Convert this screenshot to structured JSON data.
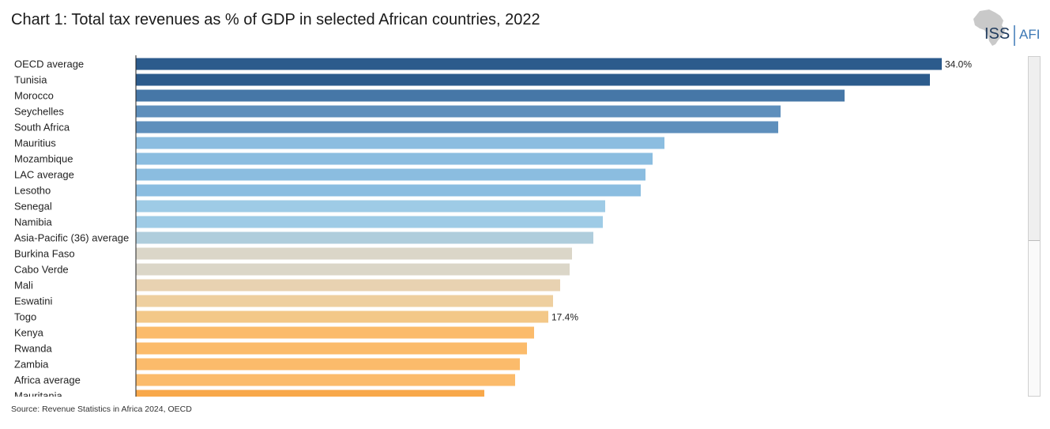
{
  "title": "Chart 1: Total tax revenues as % of GDP in selected African countries, 2022",
  "logo": {
    "left_text": "ISS",
    "right_text": "AFI"
  },
  "source": "Source: Revenue Statistics in Africa 2024, OECD",
  "chart_data": {
    "type": "bar",
    "orientation": "horizontal",
    "title": "Chart 1: Total tax revenues as % of GDP in selected African countries, 2022",
    "xlabel": "",
    "ylabel": "",
    "xlim": [
      0,
      34.5
    ],
    "categories": [
      "OECD average",
      "Tunisia",
      "Morocco",
      "Seychelles",
      "South Africa",
      "Mauritius",
      "Mozambique",
      "LAC average",
      "Lesotho",
      "Senegal",
      "Namibia",
      "Asia-Pacific (36) average",
      "Burkina Faso",
      "Cabo Verde",
      "Mali",
      "Eswatini",
      "Togo",
      "Kenya",
      "Rwanda",
      "Zambia",
      "Africa average",
      "Mauritania"
    ],
    "values": [
      34.0,
      33.5,
      29.9,
      27.2,
      27.1,
      22.3,
      21.8,
      21.5,
      21.3,
      19.8,
      19.7,
      19.3,
      18.4,
      18.3,
      17.9,
      17.6,
      17.4,
      16.8,
      16.5,
      16.2,
      16.0,
      14.7
    ],
    "colors": [
      "#2c5b8c",
      "#2c5b8c",
      "#4677a7",
      "#5e8fbc",
      "#5e8fbc",
      "#8bbde0",
      "#8bbde0",
      "#8bbde0",
      "#8bbde0",
      "#9ecbe6",
      "#9ecbe6",
      "#afcddc",
      "#dbd6c8",
      "#dbd6c8",
      "#e8d2b1",
      "#eecf9f",
      "#f3c888",
      "#fbbb6b",
      "#fbbb6b",
      "#fbbb6b",
      "#fbbb6b",
      "#f8a84a"
    ],
    "data_labels": [
      {
        "category": "OECD average",
        "text": "34.0%"
      },
      {
        "category": "Togo",
        "text": "17.4%"
      }
    ],
    "grid": false
  }
}
